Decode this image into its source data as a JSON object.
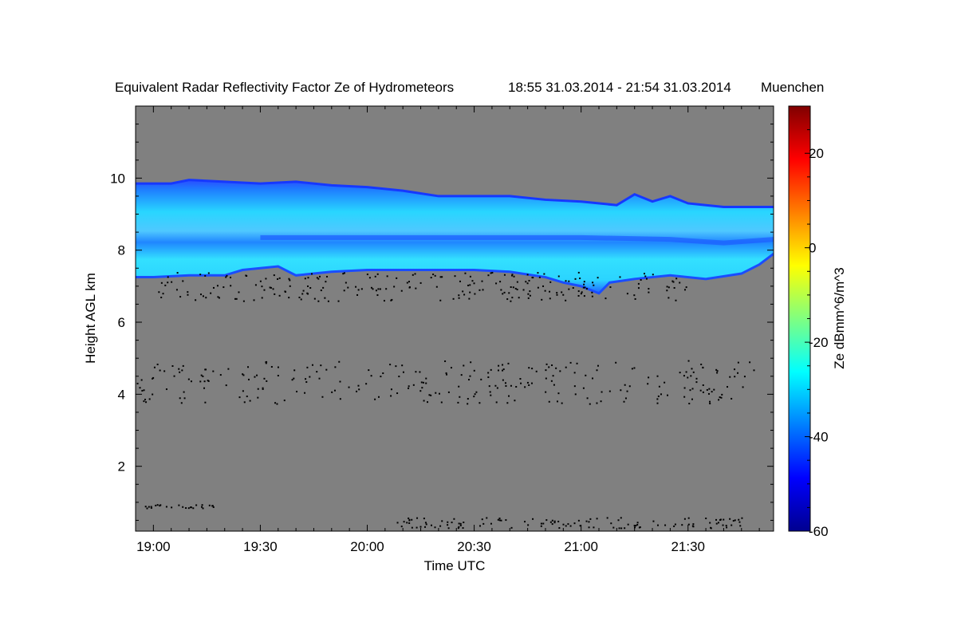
{
  "chart_data": {
    "type": "heatmap",
    "title": "Equivalent Radar Reflectivity Factor Ze of Hydrometeors",
    "time_range": "18:55 31.03.2014 - 21:54 31.03.2014",
    "location": "Muenchen",
    "xlabel": "Time UTC",
    "ylabel": "Height AGL km",
    "x_unit": "minutes since 00:00 UTC",
    "xlim": [
      1135,
      1314
    ],
    "ylim": [
      0.2,
      12.0
    ],
    "x_ticks": [
      {
        "value": 1140,
        "label": "19:00"
      },
      {
        "value": 1170,
        "label": "19:30"
      },
      {
        "value": 1200,
        "label": "20:00"
      },
      {
        "value": 1230,
        "label": "20:30"
      },
      {
        "value": 1260,
        "label": "21:00"
      },
      {
        "value": 1290,
        "label": "21:30"
      }
    ],
    "y_ticks": [
      {
        "value": 2,
        "label": "2"
      },
      {
        "value": 4,
        "label": "4"
      },
      {
        "value": 6,
        "label": "6"
      },
      {
        "value": 8,
        "label": "8"
      },
      {
        "value": 10,
        "label": "10"
      }
    ],
    "background_color": "#808080",
    "colorbar": {
      "label": "Ze dBmm^6/m^3",
      "range": [
        -60,
        30
      ],
      "ticks": [
        {
          "value": 20,
          "label": "20"
        },
        {
          "value": 0,
          "label": "0"
        },
        {
          "value": -20,
          "label": "-20"
        },
        {
          "value": -40,
          "label": "-40"
        },
        {
          "value": -60,
          "label": "-60"
        }
      ],
      "colormap": "jet"
    },
    "cloud_layer": {
      "description": "ice cloud layer",
      "top_km": [
        [
          1135,
          9.85
        ],
        [
          1145,
          9.85
        ],
        [
          1150,
          9.95
        ],
        [
          1160,
          9.9
        ],
        [
          1170,
          9.85
        ],
        [
          1180,
          9.9
        ],
        [
          1190,
          9.8
        ],
        [
          1200,
          9.75
        ],
        [
          1210,
          9.65
        ],
        [
          1220,
          9.5
        ],
        [
          1230,
          9.5
        ],
        [
          1240,
          9.5
        ],
        [
          1250,
          9.4
        ],
        [
          1260,
          9.35
        ],
        [
          1270,
          9.25
        ],
        [
          1275,
          9.55
        ],
        [
          1280,
          9.35
        ],
        [
          1285,
          9.5
        ],
        [
          1290,
          9.3
        ],
        [
          1300,
          9.2
        ],
        [
          1310,
          9.2
        ],
        [
          1314,
          9.2
        ]
      ],
      "base_km": [
        [
          1135,
          7.25
        ],
        [
          1140,
          7.25
        ],
        [
          1150,
          7.3
        ],
        [
          1160,
          7.3
        ],
        [
          1165,
          7.45
        ],
        [
          1170,
          7.5
        ],
        [
          1175,
          7.55
        ],
        [
          1180,
          7.3
        ],
        [
          1190,
          7.4
        ],
        [
          1200,
          7.45
        ],
        [
          1210,
          7.45
        ],
        [
          1220,
          7.45
        ],
        [
          1230,
          7.45
        ],
        [
          1240,
          7.4
        ],
        [
          1250,
          7.25
        ],
        [
          1255,
          7.1
        ],
        [
          1260,
          7.0
        ],
        [
          1265,
          6.8
        ],
        [
          1268,
          7.1
        ],
        [
          1275,
          7.2
        ],
        [
          1285,
          7.3
        ],
        [
          1295,
          7.2
        ],
        [
          1305,
          7.35
        ],
        [
          1310,
          7.6
        ],
        [
          1314,
          7.9
        ]
      ],
      "core_ze_dbz": -32,
      "edge_ze_dbz": -45
    },
    "clutter_bands": [
      {
        "description": "scattered points around 7 km",
        "t_range": [
          1140,
          1290
        ],
        "h_center_km": 7.0,
        "h_spread_km": 0.4
      },
      {
        "description": "scattered points around 4.3 km",
        "t_range": [
          1135,
          1309
        ],
        "h_center_km": 4.35,
        "h_spread_km": 0.6
      },
      {
        "description": "line near surface",
        "t_range": [
          1208,
          1308
        ],
        "h_center_km": 0.45,
        "h_spread_km": 0.15
      },
      {
        "description": "early near-surface points",
        "t_range": [
          1135,
          1157
        ],
        "h_center_km": 0.9,
        "h_spread_km": 0.05
      }
    ]
  }
}
